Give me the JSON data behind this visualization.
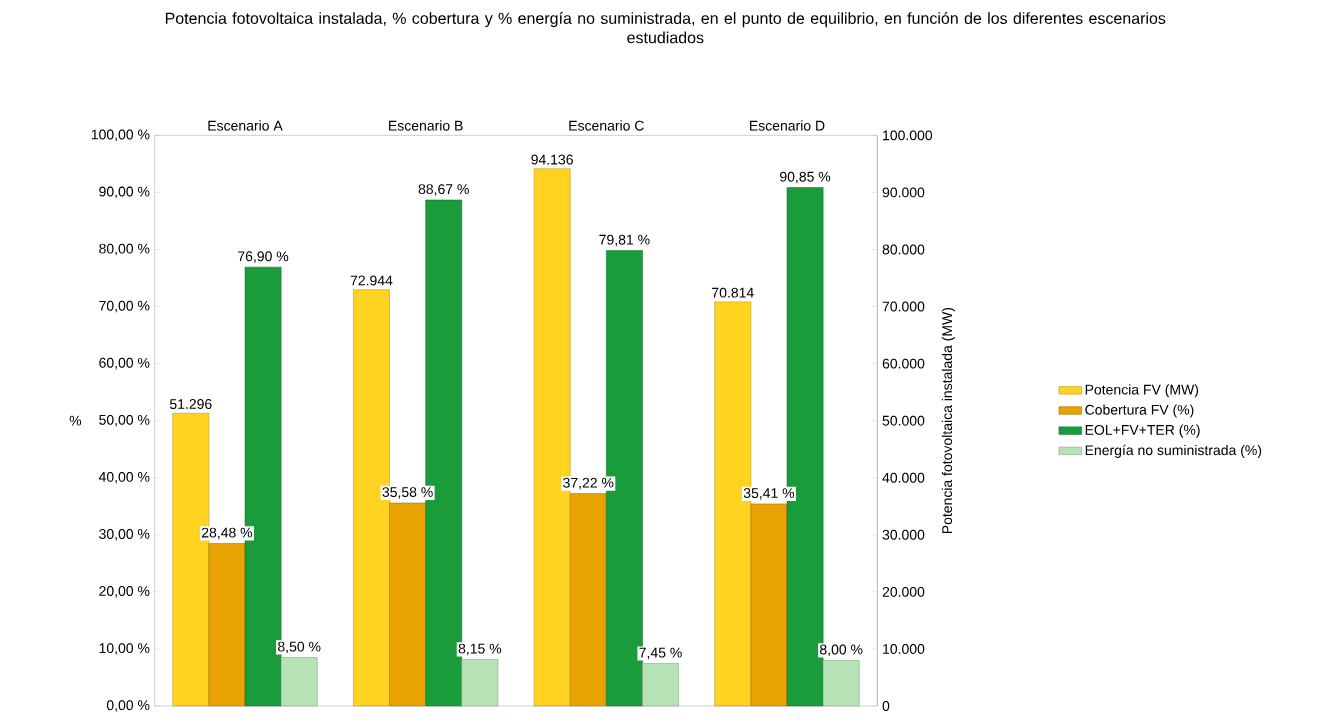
{
  "chart_data": {
    "type": "bar",
    "title": "Potencia fotovoltaica instalada, % cobertura y % energía no suministrada, en el punto de equilibrio, en función de los diferentes escenarios estudiados",
    "categories": [
      "Escenario A",
      "Escenario B",
      "Escenario C",
      "Escenario D"
    ],
    "series": [
      {
        "name": "Potencia FV (MW)",
        "color": "#ffd320",
        "axis": "y2",
        "values": [
          51296,
          72944,
          94136,
          70814
        ],
        "value_labels": [
          "51.296",
          "72.944",
          "94.136",
          "70.814"
        ]
      },
      {
        "name": "Cobertura FV (%)",
        "color": "#e8a202",
        "values": [
          28.48,
          35.58,
          37.22,
          35.41
        ],
        "value_labels": [
          "28,48 %",
          "35,58 %",
          "37,22 %",
          "35,41 %"
        ]
      },
      {
        "name": "EOL+FV+TER (%)",
        "color": "#1a9c3a",
        "values": [
          76.9,
          88.67,
          79.81,
          90.85
        ],
        "value_labels": [
          "76,90 %",
          "88,67 %",
          "79,81 %",
          "90,85 %"
        ]
      },
      {
        "name": "Energía no suministrada (%)",
        "color": "#b5e3b5",
        "values": [
          8.5,
          8.15,
          7.45,
          8.0
        ],
        "value_labels": [
          "8,50 %",
          "8,15 %",
          "7,45 %",
          "8,00 %"
        ]
      }
    ],
    "ylabel": "%",
    "y2label": "Potencia fotovoltaica instalada (MW)",
    "ylim": [
      0,
      100
    ],
    "yticks": [
      {
        "value": 0,
        "label": "0,00 %"
      },
      {
        "value": 10,
        "label": "10,00 %"
      },
      {
        "value": 20,
        "label": "20,00 %"
      },
      {
        "value": 30,
        "label": "30,00 %"
      },
      {
        "value": 40,
        "label": "40,00 %"
      },
      {
        "value": 50,
        "label": "50,00 %"
      },
      {
        "value": 60,
        "label": "60,00 %"
      },
      {
        "value": 70,
        "label": "70,00 %"
      },
      {
        "value": 80,
        "label": "80,00 %"
      },
      {
        "value": 90,
        "label": "90,00 %"
      },
      {
        "value": 100,
        "label": "100,00 %"
      }
    ],
    "y2lim": [
      0,
      100000
    ],
    "y2ticks": [
      0,
      {
        "value": 10000,
        "label": "10.000"
      },
      {
        "value": 20000,
        "label": "20.000"
      },
      {
        "value": 30000,
        "label": "30.000"
      },
      {
        "value": 40000,
        "label": "40.000"
      },
      {
        "value": 50000,
        "label": "50.000"
      },
      {
        "value": 60000,
        "label": "60.000"
      },
      {
        "value": 70000,
        "label": "70.000"
      },
      {
        "value": 80000,
        "label": "80.000"
      },
      {
        "value": 90000,
        "label": "90.000"
      },
      {
        "value": 100000,
        "label": "100.000"
      }
    ],
    "legend": "right"
  }
}
